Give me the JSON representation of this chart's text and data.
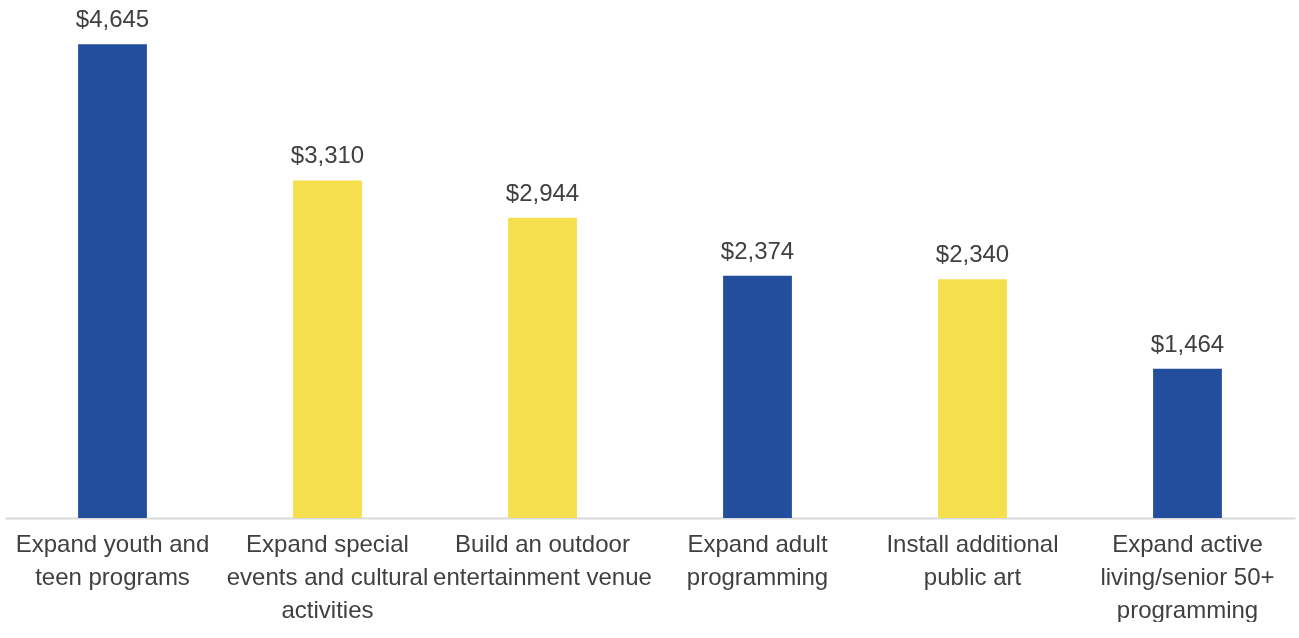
{
  "chart_data": {
    "type": "bar",
    "categories": [
      "Expand youth and teen programs",
      "Expand special events and cultural activities",
      "Build an outdoor entertainment venue",
      "Expand adult programming",
      "Install additional public art",
      "Expand active living/senior 50+ programming"
    ],
    "values": [
      4645,
      3310,
      2944,
      2374,
      2340,
      1464
    ],
    "value_labels": [
      "$4,645",
      "$3,310",
      "$2,944",
      "$2,374",
      "$2,340",
      "$1,464"
    ],
    "colors": [
      "#234e9d",
      "#f5df4d",
      "#f5df4d",
      "#234e9d",
      "#f5df4d",
      "#234e9d"
    ]
  }
}
